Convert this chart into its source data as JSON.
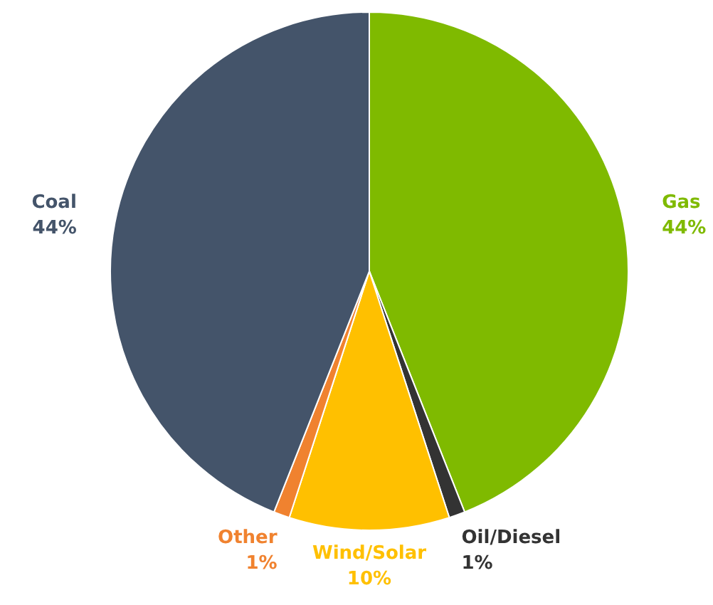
{
  "chart_data": {
    "type": "pie",
    "categories": [
      "Gas",
      "Oil/Diesel",
      "Wind/Solar",
      "Other",
      "Coal"
    ],
    "values": [
      44,
      1,
      10,
      1,
      44
    ],
    "value_labels": [
      "44%",
      "1%",
      "10%",
      "1%",
      "44%"
    ],
    "colors": [
      "#7fba00",
      "#333333",
      "#ffc000",
      "#f0822f",
      "#44546a"
    ]
  }
}
